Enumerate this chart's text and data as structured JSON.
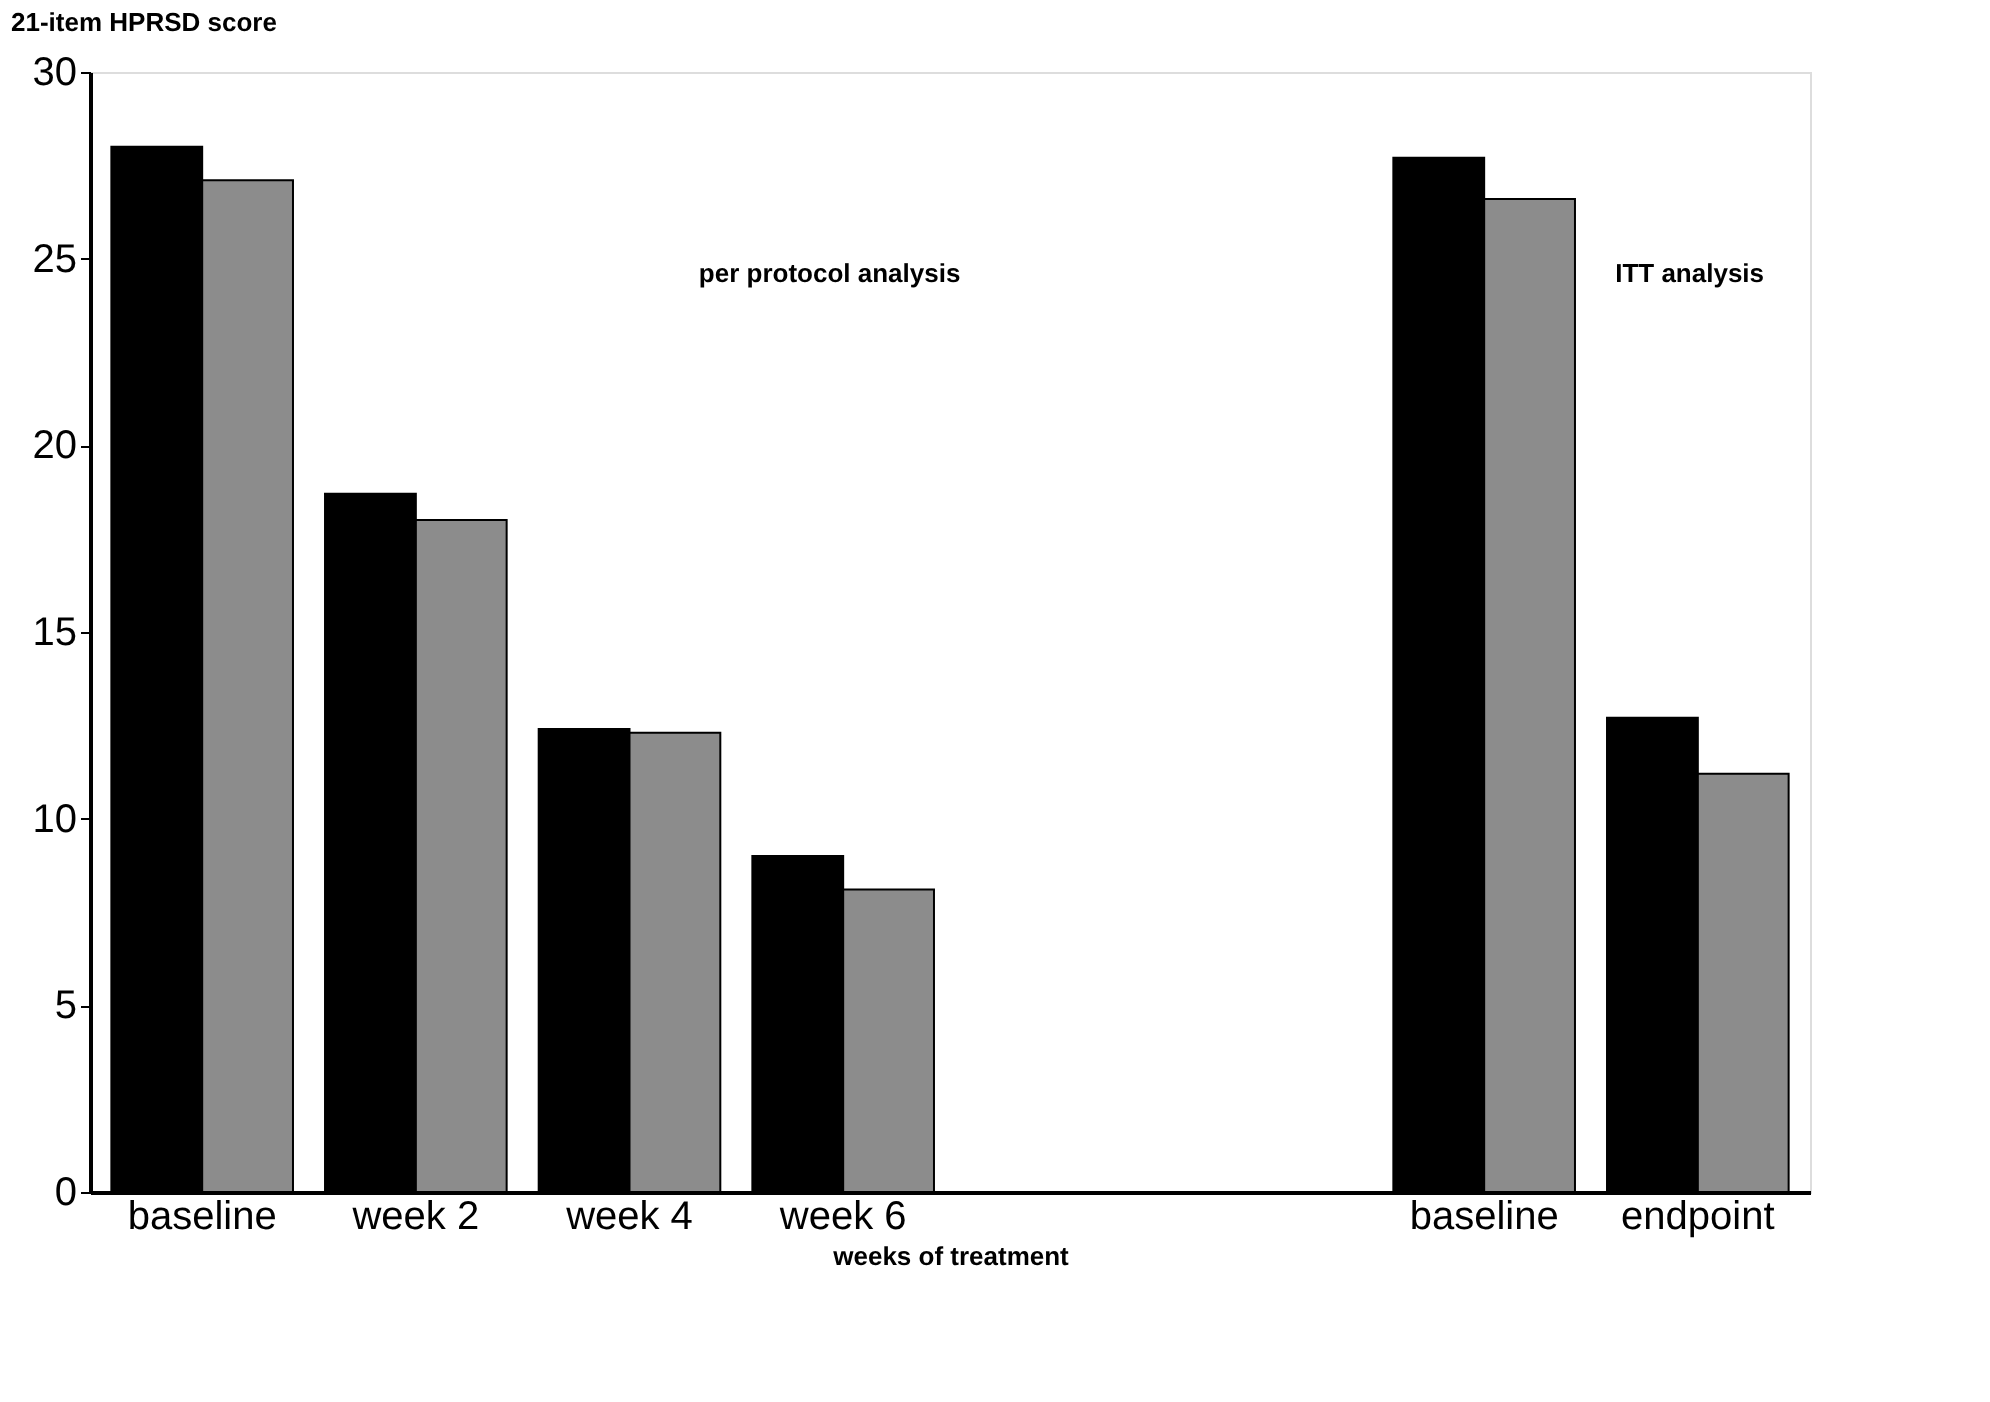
{
  "chart_data": {
    "type": "bar",
    "ylabel": "21-item HPRSD score",
    "xlabel": "weeks of treatment",
    "categories": [
      "baseline",
      "week 2",
      "week 4",
      "week 6",
      null,
      null,
      "baseline",
      "endpoint"
    ],
    "series": [
      {
        "color": "#000000",
        "values": [
          28.0,
          18.7,
          12.4,
          9.0,
          null,
          null,
          27.7,
          12.7
        ]
      },
      {
        "color": "#8c8c8c",
        "values": [
          27.1,
          18.0,
          12.3,
          8.1,
          null,
          null,
          26.6,
          11.2
        ]
      }
    ],
    "ylim": [
      0,
      30
    ],
    "yticks": [
      0,
      5,
      10,
      15,
      20,
      25,
      30
    ],
    "grid": false,
    "annotations": [
      "per protocol analysis",
      "ITT analysis"
    ]
  }
}
